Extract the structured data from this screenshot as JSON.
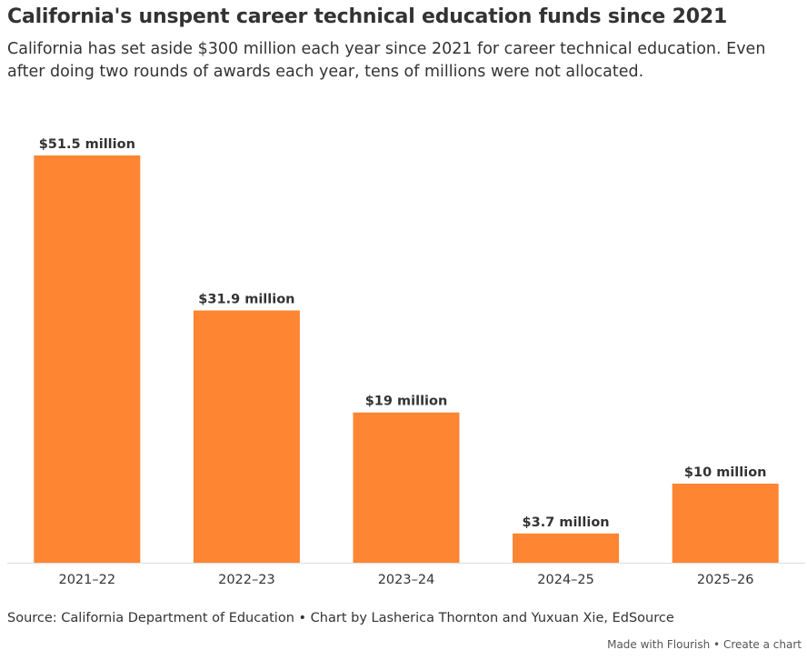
{
  "title": "California's unspent career technical education funds since 2021",
  "subtitle": "California has set aside $300 million each year since 2021 for career technical education. Even after doing two rounds of awards each year, tens of millions were not allocated.",
  "source": "Source: California Department of Education • Chart by Lasherica Thornton and Yuxuan Xie, EdSource",
  "credit": {
    "made_with": "Made with Flourish",
    "separator": "•",
    "create": "Create a chart"
  },
  "colors": {
    "bar": "#fe8532",
    "text": "#333333",
    "axis": "#dddddd"
  },
  "chart_data": {
    "type": "bar",
    "categories": [
      "2021–22",
      "2022–23",
      "2023–24",
      "2024–25",
      "2025–26"
    ],
    "values": [
      51.5,
      31.9,
      19,
      3.7,
      10
    ],
    "value_labels": [
      "$51.5 million",
      "$31.9 million",
      "$19 million",
      "$3.7 million",
      "$10 million"
    ],
    "ylim": [
      0,
      51.5
    ],
    "grid": false,
    "legend": "none"
  }
}
